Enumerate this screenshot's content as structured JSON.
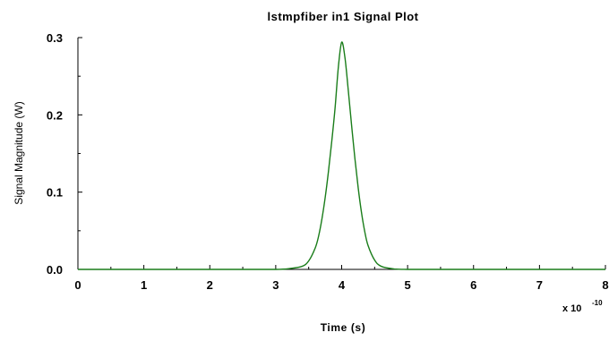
{
  "chart_data": {
    "type": "line",
    "title": "lstmpfiber in1 Signal Plot",
    "xlabel": "Time (s)",
    "ylabel": "Signal Magnitude (W)",
    "x_scale_base": "x 10",
    "x_scale_exponent": "-10",
    "xlim": [
      0,
      8
    ],
    "ylim": [
      0,
      0.3
    ],
    "x_ticks": [
      "0",
      "1",
      "2",
      "3",
      "4",
      "5",
      "6",
      "7",
      "8"
    ],
    "y_ticks": [
      "0.0",
      "0.1",
      "0.2",
      "0.3"
    ],
    "grid": false,
    "series": [
      {
        "color": "#1a7d1a",
        "x": [
          0,
          0.5,
          1,
          1.5,
          2,
          2.5,
          3,
          3.2,
          3.4,
          3.5,
          3.6,
          3.65,
          3.7,
          3.75,
          3.8,
          3.85,
          3.9,
          3.95,
          4.0,
          4.05,
          4.1,
          4.15,
          4.2,
          4.25,
          4.3,
          4.35,
          4.4,
          4.5,
          4.6,
          4.8,
          5,
          5.5,
          6,
          6.5,
          7,
          7.5,
          8
        ],
        "y": [
          0,
          0,
          0,
          0,
          0,
          0,
          0,
          0.001,
          0.004,
          0.011,
          0.028,
          0.043,
          0.065,
          0.093,
          0.127,
          0.166,
          0.209,
          0.262,
          0.294,
          0.274,
          0.232,
          0.187,
          0.144,
          0.106,
          0.074,
          0.049,
          0.031,
          0.012,
          0.004,
          0.0005,
          0,
          0,
          0,
          0,
          0,
          0,
          0
        ]
      }
    ]
  }
}
